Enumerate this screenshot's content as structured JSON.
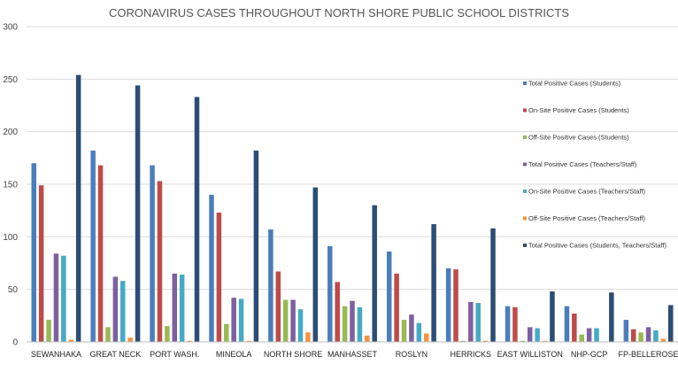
{
  "chart_data": {
    "type": "bar",
    "title": "CORONAVIRUS CASES THROUGHOUT NORTH SHORE PUBLIC SCHOOL DISTRICTS",
    "xlabel": "",
    "ylabel": "",
    "ylim": [
      0,
      300
    ],
    "yticks": [
      0,
      50,
      100,
      150,
      200,
      250,
      300
    ],
    "grid": true,
    "legend_position": "right",
    "categories": [
      "SEWANHAKA",
      "GREAT NECK",
      "PORT WASH.",
      "MINEOLA",
      "NORTH SHORE",
      "MANHASSET",
      "ROSLYN",
      "HERRICKS",
      "EAST WILLISTON",
      "NHP-GCP",
      "FP-BELLEROSE"
    ],
    "series": [
      {
        "name": "Total Positive Cases (Students)",
        "color": "#4a7ebb",
        "values": [
          170,
          182,
          168,
          140,
          107,
          91,
          86,
          70,
          34,
          34,
          21
        ]
      },
      {
        "name": "On-Site Positive Cases (Students)",
        "color": "#be4b48",
        "values": [
          149,
          168,
          153,
          123,
          67,
          57,
          65,
          69,
          33,
          27,
          12
        ]
      },
      {
        "name": "Off-Site Positive Cases (Students)",
        "color": "#98b954",
        "values": [
          21,
          14,
          15,
          17,
          40,
          34,
          21,
          1,
          1,
          7,
          9
        ]
      },
      {
        "name": "Total Positive Cases (Teachers/Staff)",
        "color": "#7d60a0",
        "values": [
          84,
          62,
          65,
          42,
          40,
          39,
          26,
          38,
          14,
          13,
          14
        ]
      },
      {
        "name": "On-Site Positive Cases (Teachers/Staff)",
        "color": "#46aac5",
        "values": [
          82,
          58,
          64,
          41,
          31,
          33,
          18,
          37,
          13,
          13,
          11
        ]
      },
      {
        "name": "Off-Site Positive Cases (Teachers/Staff)",
        "color": "#f69240",
        "values": [
          2,
          4,
          1,
          1,
          9,
          6,
          8,
          1,
          1,
          0,
          3
        ]
      },
      {
        "name": "Total Positive Cases (Students, Teachers/Staff)",
        "color": "#2c4d75",
        "values": [
          254,
          244,
          233,
          182,
          147,
          130,
          112,
          108,
          48,
          47,
          35
        ]
      }
    ]
  }
}
